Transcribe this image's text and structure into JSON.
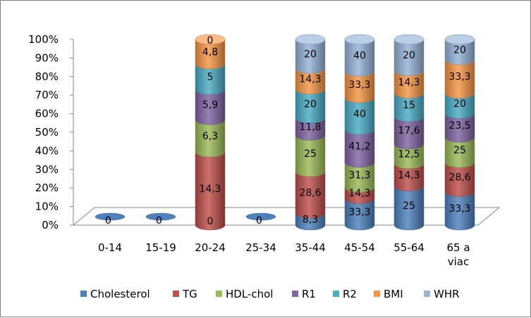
{
  "chart_data": {
    "type": "bar",
    "stacked": "percent",
    "style": "3d-cylinder",
    "categories": [
      "0-14",
      "15-19",
      "20-24",
      "25-34",
      "35-44",
      "45-54",
      "55-64",
      "65 a viac"
    ],
    "series": [
      {
        "name": "Cholesterol",
        "color": "#4f81bd",
        "values": [
          0,
          0,
          0,
          0,
          8.3,
          33.3,
          25,
          33.3
        ]
      },
      {
        "name": "TG",
        "color": "#c0504d",
        "values": [
          0,
          0,
          14.3,
          0,
          28.6,
          14.3,
          14.3,
          28.6
        ]
      },
      {
        "name": "HDL-chol",
        "color": "#9bbb59",
        "values": [
          0,
          0,
          6.3,
          0,
          25,
          31.3,
          12.5,
          25
        ]
      },
      {
        "name": "R1",
        "color": "#8064a2",
        "values": [
          0,
          0,
          5.9,
          0,
          11.8,
          41.2,
          17.6,
          23.5
        ]
      },
      {
        "name": "R2",
        "color": "#4bacc6",
        "values": [
          0,
          0,
          5,
          0,
          20,
          40,
          15,
          20
        ]
      },
      {
        "name": "BMI",
        "color": "#f79646",
        "values": [
          0,
          0,
          4.8,
          0,
          14.3,
          33.3,
          14.3,
          33.3
        ]
      },
      {
        "name": "WHR",
        "color": "#95b3d7",
        "values": [
          0,
          0,
          0,
          0,
          20,
          40,
          20,
          20
        ]
      }
    ],
    "ylim": [
      0,
      100
    ],
    "yticks": [
      "0%",
      "10%",
      "20%",
      "30%",
      "40%",
      "50%",
      "60%",
      "70%",
      "80%",
      "90%",
      "100%"
    ],
    "empty_label": "0",
    "legend_position": "bottom",
    "grid": false
  }
}
